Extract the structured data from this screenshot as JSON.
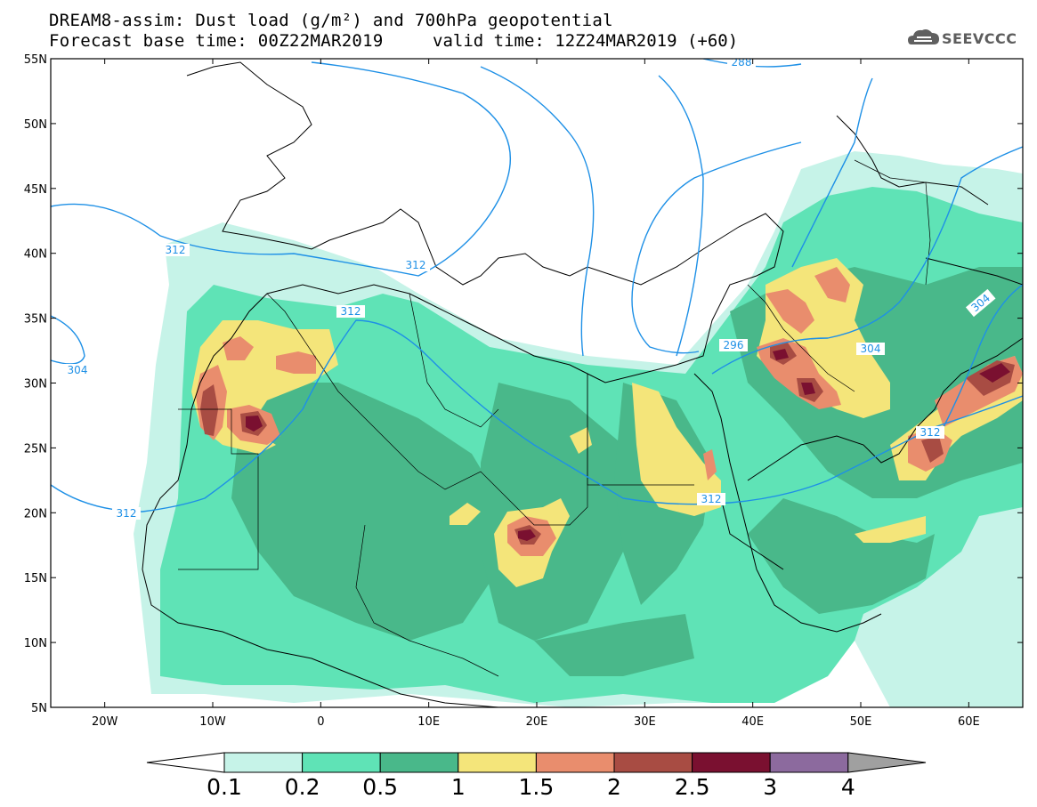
{
  "title": {
    "line1": "DREAM8-assim: Dust load (g/m²) and 700hPa geopotential",
    "line2": "Forecast base time: 00Z22MAR2019",
    "valid": "valid time: 12Z24MAR2019 (+60)"
  },
  "logo": {
    "text": "SEEVCCC",
    "icon": "cloud-icon"
  },
  "map": {
    "lat_range": [
      5,
      55
    ],
    "lon_range": [
      -25,
      65
    ],
    "lat_ticks": [
      "5N",
      "10N",
      "15N",
      "20N",
      "25N",
      "30N",
      "35N",
      "40N",
      "45N",
      "50N",
      "55N"
    ],
    "lon_ticks": [
      "20W",
      "10W",
      "0",
      "10E",
      "20E",
      "30E",
      "40E",
      "50E",
      "60E"
    ],
    "contour_labels": [
      "288",
      "312",
      "312",
      "312",
      "296",
      "304",
      "304",
      "304",
      "312",
      "312"
    ]
  },
  "colorbar": {
    "levels": [
      "0.1",
      "0.2",
      "0.5",
      "1",
      "1.5",
      "2",
      "2.5",
      "3",
      "4"
    ],
    "colors": [
      "#c6f3e8",
      "#5fe3b6",
      "#49b88a",
      "#f4e57a",
      "#e98d6d",
      "#a84c43",
      "#7a1030",
      "#8c6a9e",
      "#a0a0a0"
    ],
    "under_color": "#ffffff",
    "over_color": "#a0a0a0"
  }
}
